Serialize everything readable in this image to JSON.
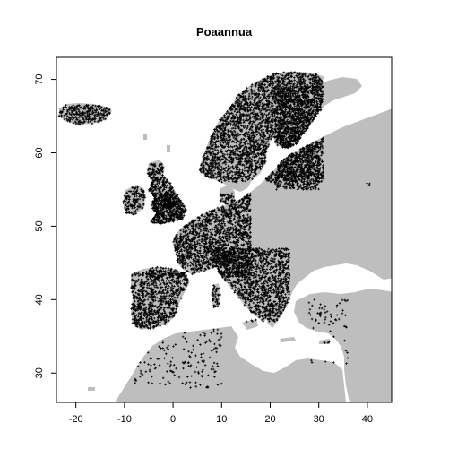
{
  "figure": {
    "title": "Poaannua"
  },
  "map": {
    "land_color": "#bebebe",
    "sea_color": "#ffffff",
    "point_color": "#000000",
    "point_symbol": "cross",
    "xlim": [
      -24,
      45
    ],
    "ylim": [
      26,
      73
    ]
  },
  "chart_data": {
    "type": "scatter",
    "title": "Poaannua",
    "xlabel": "",
    "ylabel": "",
    "xlim": [
      -24,
      45
    ],
    "ylim": [
      26,
      73
    ],
    "x_ticks": [
      "-20",
      "-10",
      "0",
      "10",
      "20",
      "30",
      "40"
    ],
    "y_ticks": [
      "30",
      "40",
      "50",
      "60",
      "70"
    ],
    "grid": false,
    "legend": "none",
    "occurrence_regions": [
      {
        "region": "Iceland",
        "x": [
          -24,
          -13
        ],
        "y": [
          63.5,
          66.5
        ]
      },
      {
        "region": "Ireland",
        "x": [
          -10.5,
          -6
        ],
        "y": [
          51.5,
          55.5
        ]
      },
      {
        "region": "Great Britain",
        "x": [
          -6,
          2
        ],
        "y": [
          50,
          58.5
        ]
      },
      {
        "region": "Scandinavia",
        "x": [
          5,
          31
        ],
        "y": [
          56,
          71
        ]
      },
      {
        "region": "Finland and Baltic",
        "x": [
          21,
          30
        ],
        "y": [
          55,
          69
        ]
      },
      {
        "region": "Western and Central Europe",
        "x": [
          -5,
          16
        ],
        "y": [
          43,
          54.5
        ]
      },
      {
        "region": "Iberian Peninsula",
        "x": [
          -9.5,
          3
        ],
        "y": [
          36,
          43.8
        ]
      },
      {
        "region": "North Africa",
        "x": [
          -10,
          10
        ],
        "y": [
          28,
          37
        ]
      },
      {
        "region": "Italy and Balkans",
        "x": [
          8,
          24
        ],
        "y": [
          37,
          47
        ]
      },
      {
        "region": "Eastern Mediterranean",
        "x": [
          28,
          36
        ],
        "y": [
          31,
          40
        ]
      },
      {
        "region": "Ural",
        "x": [
          39.5,
          40.5
        ],
        "y": [
          55,
          56
        ]
      }
    ]
  }
}
